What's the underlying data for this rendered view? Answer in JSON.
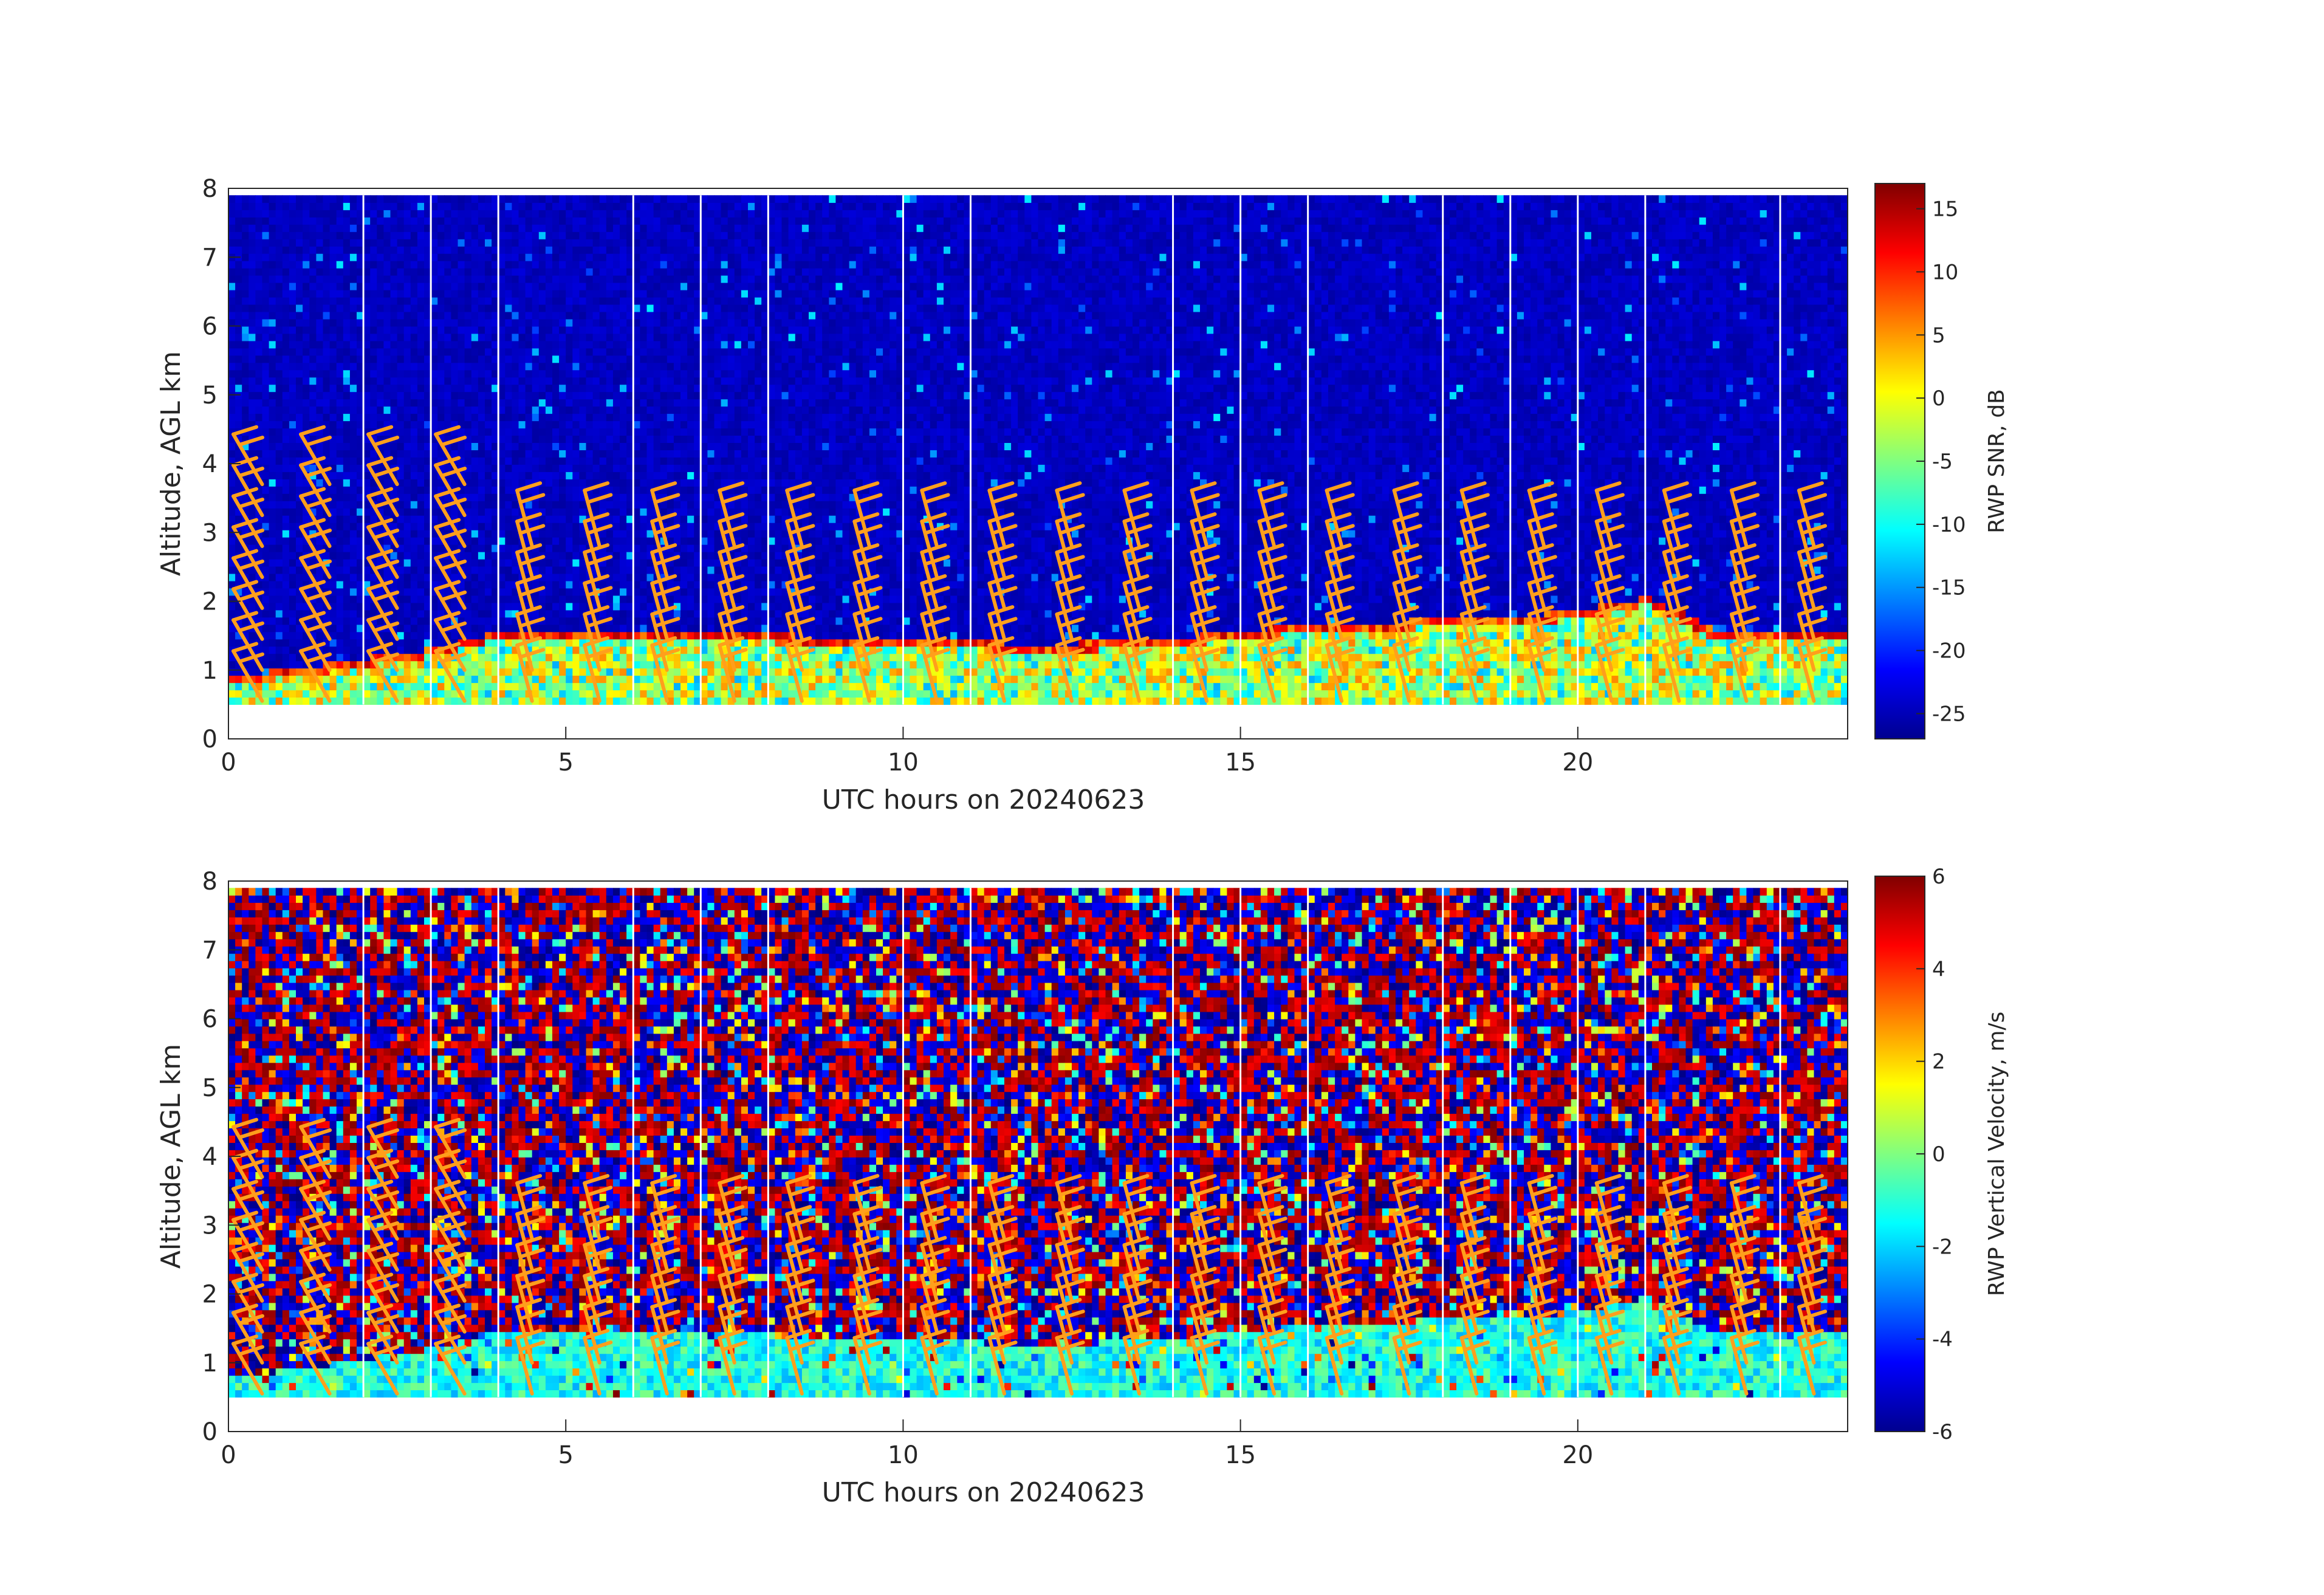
{
  "chart_data": [
    {
      "type": "heatmap",
      "name": "snr",
      "xlabel": "UTC hours on 20240623",
      "ylabel": "Altitude, AGL km",
      "xlim": [
        0,
        24
      ],
      "ylim": [
        0,
        8
      ],
      "xticks": [
        "0",
        "5",
        "10",
        "15",
        "20"
      ],
      "yticks": [
        "0",
        "1",
        "2",
        "3",
        "4",
        "5",
        "6",
        "7",
        "8"
      ],
      "colorbar": {
        "label": "RWP SNR, dB",
        "range": [
          -27,
          17
        ],
        "ticks": [
          "-25",
          "-20",
          "-15",
          "-10",
          "-5",
          "0",
          "5",
          "10",
          "15"
        ],
        "colormap": "jet"
      },
      "data_altitude_range_km": [
        0.5,
        7.9
      ],
      "boundary_layer_top_km": [
        [
          0,
          0.75
        ],
        [
          1,
          0.85
        ],
        [
          2,
          1.0
        ],
        [
          3,
          1.15
        ],
        [
          4,
          1.4
        ],
        [
          5,
          1.4
        ],
        [
          6,
          1.4
        ],
        [
          7,
          1.35
        ],
        [
          8,
          1.35
        ],
        [
          9,
          1.3
        ],
        [
          10,
          1.3
        ],
        [
          11,
          1.25
        ],
        [
          12,
          1.2
        ],
        [
          13,
          1.25
        ],
        [
          14,
          1.3
        ],
        [
          15,
          1.4
        ],
        [
          16,
          1.5
        ],
        [
          17,
          1.5
        ],
        [
          18,
          1.6
        ],
        [
          19,
          1.6
        ],
        [
          20,
          1.7
        ],
        [
          21,
          1.9
        ],
        [
          22,
          1.4
        ],
        [
          23,
          1.4
        ],
        [
          24,
          1.4
        ]
      ],
      "gap_lines_utc_hours": [
        2,
        3,
        4,
        6,
        7,
        8,
        10,
        11,
        14,
        15,
        16,
        18,
        19,
        20,
        21,
        23
      ]
    },
    {
      "type": "heatmap",
      "name": "vertical-velocity",
      "xlabel": "UTC hours on 20240623",
      "ylabel": "Altitude, AGL km",
      "xlim": [
        0,
        24
      ],
      "ylim": [
        0,
        8
      ],
      "xticks": [
        "0",
        "5",
        "10",
        "15",
        "20"
      ],
      "yticks": [
        "0",
        "1",
        "2",
        "3",
        "4",
        "5",
        "6",
        "7",
        "8"
      ],
      "colorbar": {
        "label": "RWP Vertical Velocity, m/s",
        "range": [
          -6,
          6
        ],
        "ticks": [
          "-6",
          "-4",
          "-2",
          "0",
          "2",
          "4",
          "6"
        ],
        "colormap": "jet"
      },
      "data_altitude_range_km": [
        0.5,
        7.9
      ],
      "gap_lines_utc_hours": [
        2,
        3,
        4,
        6,
        7,
        8,
        10,
        11,
        14,
        15,
        16,
        18,
        19,
        20,
        21,
        23
      ]
    }
  ],
  "wind_barbs": {
    "color": "#ff9f1c",
    "utc_hours": [
      0,
      1,
      2,
      3,
      4,
      5,
      6,
      7,
      8,
      9,
      10,
      11,
      12,
      13,
      14,
      15,
      16,
      17,
      18,
      19,
      20,
      21,
      22,
      23
    ]
  },
  "colors": {
    "axis": "#262626",
    "gap_line": "#ffffff",
    "background": "#ffffff"
  }
}
